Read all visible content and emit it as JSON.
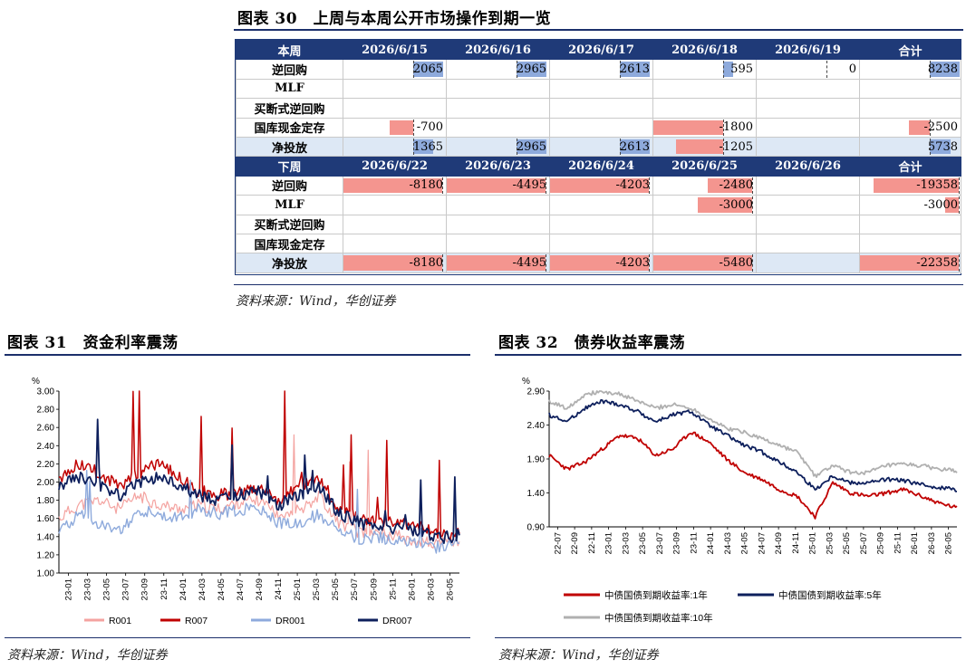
{
  "fig30": {
    "title": "图表 30　上周与本周公开市场操作到期一览",
    "source": "资料来源：Wind，华创证券",
    "week1": {
      "header": [
        "本周",
        "2026/6/15",
        "2026/6/16",
        "2026/6/17",
        "2026/6/18",
        "2026/6/19",
        "合计"
      ],
      "rows": [
        {
          "label": "逆回购",
          "values": [
            "2065",
            "2965",
            "2613",
            "595",
            "0",
            "8238"
          ]
        },
        {
          "label": "MLF",
          "values": [
            "",
            "",
            "",
            "",
            "",
            ""
          ]
        },
        {
          "label": "买断式逆回购",
          "values": [
            "",
            "",
            "",
            "",
            "",
            ""
          ]
        },
        {
          "label": "国库现金定存",
          "values": [
            "-700",
            "",
            "",
            "-1800",
            "",
            "-2500"
          ]
        },
        {
          "label": "净投放",
          "values": [
            "1365",
            "2965",
            "2613",
            "-1205",
            "",
            "5738"
          ],
          "net": true
        }
      ]
    },
    "week2": {
      "header": [
        "下周",
        "2026/6/22",
        "2026/6/23",
        "2026/6/24",
        "2026/6/25",
        "2026/6/26",
        "合计"
      ],
      "rows": [
        {
          "label": "逆回购",
          "values": [
            "-8180",
            "-4495",
            "-4203",
            "-2480",
            "",
            "-19358"
          ]
        },
        {
          "label": "MLF",
          "values": [
            "",
            "",
            "",
            "-3000",
            "",
            "-3000"
          ]
        },
        {
          "label": "买断式逆回购",
          "values": [
            "",
            "",
            "",
            "",
            "",
            ""
          ]
        },
        {
          "label": "国库现金定存",
          "values": [
            "",
            "",
            "",
            "",
            "",
            ""
          ]
        },
        {
          "label": "净投放",
          "values": [
            "-8180",
            "-4495",
            "-4203",
            "-5480",
            "",
            "-22358"
          ],
          "net": true
        }
      ]
    }
  },
  "fig31": {
    "title": "图表 31　资金利率震荡",
    "source": "资料来源：Wind，华创证券"
  },
  "fig32": {
    "title": "图表 32　债券收益率震荡",
    "source": "资料来源：Wind，华创证券"
  },
  "chart_data": [
    {
      "type": "line",
      "ylabel": "%",
      "ylim": [
        1.0,
        3.0
      ],
      "yticks": [
        "1.00",
        "1.20",
        "1.40",
        "1.60",
        "1.80",
        "2.00",
        "2.20",
        "2.40",
        "2.60",
        "2.80",
        "3.00"
      ],
      "categories": [
        "23-01",
        "23-03",
        "23-05",
        "23-07",
        "23-09",
        "23-11",
        "24-01",
        "24-03",
        "24-05",
        "24-07",
        "24-09",
        "24-11",
        "25-01",
        "25-03",
        "25-05",
        "25-07",
        "25-09",
        "25-11",
        "26-01",
        "26-03",
        "26-05"
      ],
      "legend": "bottom",
      "series": [
        {
          "name": "R001",
          "color": "#f4a3a0",
          "values": [
            1.6,
            1.75,
            1.8,
            1.7,
            1.85,
            1.75,
            1.7,
            1.75,
            1.7,
            1.78,
            1.8,
            1.65,
            1.7,
            1.85,
            1.55,
            1.45,
            1.45,
            1.4,
            1.35,
            1.32,
            1.36
          ]
        },
        {
          "name": "R007",
          "color": "#c00000",
          "values": [
            2.05,
            2.2,
            2.1,
            1.95,
            2.1,
            2.2,
            2.05,
            1.9,
            1.85,
            1.9,
            1.95,
            1.8,
            1.95,
            2.05,
            1.7,
            1.6,
            1.55,
            1.55,
            1.5,
            1.42,
            1.45
          ]
        },
        {
          "name": "DR001",
          "color": "#8eaadc",
          "values": [
            1.45,
            1.65,
            1.55,
            1.45,
            1.7,
            1.65,
            1.6,
            1.7,
            1.65,
            1.7,
            1.72,
            1.55,
            1.55,
            1.65,
            1.45,
            1.38,
            1.4,
            1.35,
            1.32,
            1.28,
            1.33
          ]
        },
        {
          "name": "DR007",
          "color": "#0d1f5c",
          "values": [
            1.95,
            2.05,
            1.95,
            1.85,
            2.0,
            2.05,
            1.95,
            1.85,
            1.8,
            1.85,
            1.9,
            1.75,
            1.85,
            1.95,
            1.65,
            1.55,
            1.5,
            1.5,
            1.47,
            1.38,
            1.42
          ]
        }
      ]
    },
    {
      "type": "line",
      "ylabel": "%",
      "ylim": [
        0.9,
        2.9
      ],
      "yticks": [
        "0.90",
        "1.40",
        "1.90",
        "2.40",
        "2.90"
      ],
      "categories": [
        "22-07",
        "22-09",
        "22-11",
        "23-01",
        "23-03",
        "23-05",
        "23-07",
        "23-09",
        "23-11",
        "24-01",
        "24-03",
        "24-05",
        "24-07",
        "24-09",
        "24-11",
        "25-01",
        "25-03",
        "25-05",
        "25-07",
        "25-09",
        "25-11",
        "26-01",
        "26-03",
        "26-05"
      ],
      "legend": "bottom",
      "series": [
        {
          "name": "中债国债到期收益率:1年",
          "color": "#c00000",
          "values": [
            1.95,
            1.75,
            1.85,
            2.05,
            2.25,
            2.2,
            1.95,
            2.05,
            2.3,
            2.15,
            1.9,
            1.7,
            1.6,
            1.45,
            1.35,
            1.05,
            1.55,
            1.4,
            1.35,
            1.4,
            1.45,
            1.35,
            1.25,
            1.18
          ]
        },
        {
          "name": "中债国债到期收益率:5年",
          "color": "#0d1f5c",
          "values": [
            2.55,
            2.45,
            2.65,
            2.75,
            2.7,
            2.6,
            2.45,
            2.55,
            2.6,
            2.4,
            2.25,
            2.1,
            2.0,
            1.85,
            1.7,
            1.45,
            1.65,
            1.55,
            1.55,
            1.6,
            1.58,
            1.52,
            1.48,
            1.45
          ]
        },
        {
          "name": "中债国债到期收益率:10年",
          "color": "#b0b0b0",
          "values": [
            2.75,
            2.65,
            2.85,
            2.9,
            2.85,
            2.75,
            2.65,
            2.7,
            2.65,
            2.5,
            2.35,
            2.3,
            2.2,
            2.1,
            2.0,
            1.65,
            1.8,
            1.7,
            1.7,
            1.8,
            1.82,
            1.8,
            1.75,
            1.72
          ]
        }
      ]
    }
  ]
}
